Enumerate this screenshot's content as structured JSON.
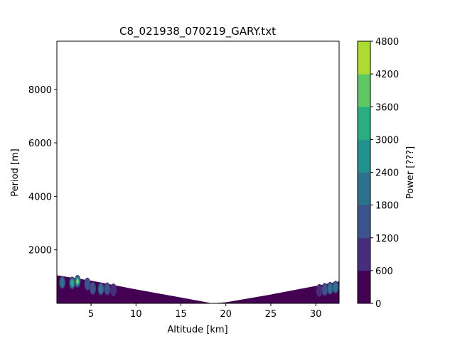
{
  "chart_data": {
    "type": "heatmap",
    "title": "C8_021938_070219_GARY.txt",
    "xlabel": "Altitude [km]",
    "ylabel": "Period [m]",
    "xlim": [
      1.2,
      32.6
    ],
    "ylim": [
      0,
      9800
    ],
    "xticks": [
      5,
      10,
      15,
      20,
      25,
      30
    ],
    "yticks": [
      2000,
      4000,
      6000,
      8000
    ],
    "colorbar": {
      "label": "Power [???]",
      "levels": [
        0,
        600,
        1200,
        1800,
        2400,
        3000,
        3600,
        4200,
        4800
      ],
      "colors": [
        "#440154",
        "#472d7b",
        "#3b528b",
        "#2c728e",
        "#21918c",
        "#28ae80",
        "#5ec962",
        "#addc30",
        "#fde725"
      ]
    },
    "cone_of_influence": [
      [
        1.2,
        1050
      ],
      [
        5,
        850
      ],
      [
        10,
        520
      ],
      [
        15,
        220
      ],
      [
        18.5,
        0
      ],
      [
        20,
        40
      ],
      [
        25,
        330
      ],
      [
        30,
        650
      ],
      [
        32.6,
        820
      ]
    ],
    "power_peaks": [
      {
        "x": 1.8,
        "y": 780,
        "level": 3
      },
      {
        "x": 2.9,
        "y": 760,
        "level": 5
      },
      {
        "x": 3.5,
        "y": 820,
        "level": 7
      },
      {
        "x": 4.6,
        "y": 720,
        "level": 2
      },
      {
        "x": 5.2,
        "y": 560,
        "level": 2
      },
      {
        "x": 6.1,
        "y": 540,
        "level": 3
      },
      {
        "x": 6.8,
        "y": 540,
        "level": 2
      },
      {
        "x": 7.5,
        "y": 500,
        "level": 1
      },
      {
        "x": 30.4,
        "y": 480,
        "level": 1
      },
      {
        "x": 31.0,
        "y": 520,
        "level": 2
      },
      {
        "x": 31.6,
        "y": 560,
        "level": 3
      },
      {
        "x": 32.2,
        "y": 600,
        "level": 3
      }
    ]
  }
}
